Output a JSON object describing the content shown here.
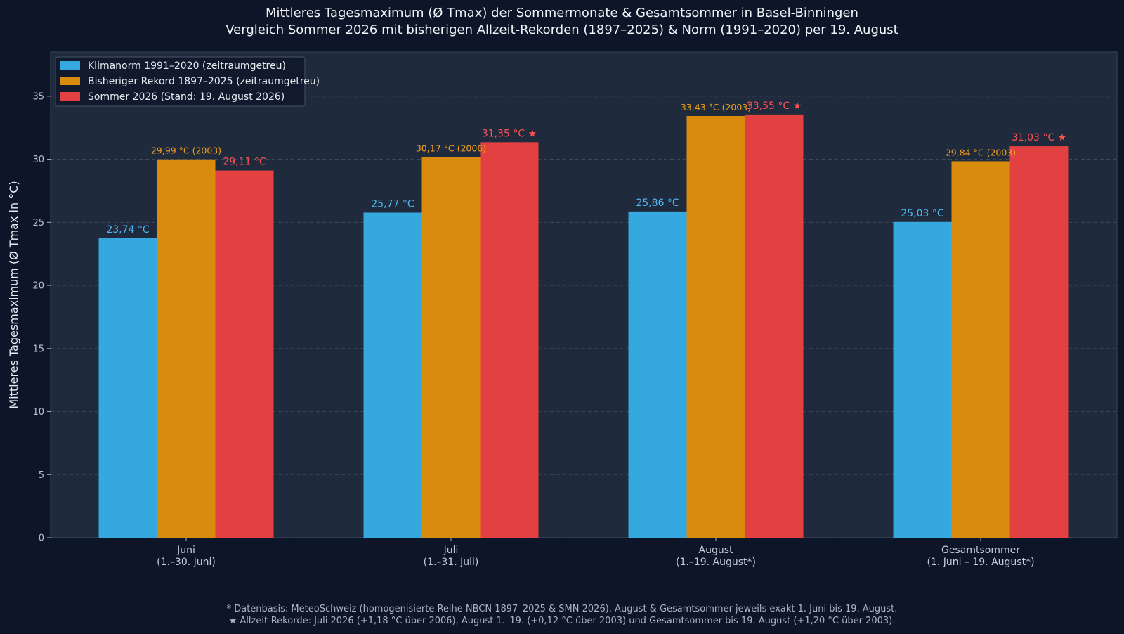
{
  "title_line1": "Mittleres Tagesmaximum (Ø Tmax) der Sommermonate & Gesamtsommer in Basel-Binningen",
  "title_line2": "Vergleich Sommer 2026 mit bisherigen Allzeit-Rekorden (1897–2025) & Norm (1991–2020) per 19. August",
  "footnote_line1": "* Datenbasis: MeteoSchweiz (homogenisierte Reihe NBCN 1897–2025 & SMN 2026). August & Gesamtsommer jeweils exakt 1. Juni bis 19. August.",
  "footnote_line2": "★ Allzeit-Rekorde: Juli 2026 (+1,18 °C über 2006), August 1.–19. (+0,12 °C über 2003) und Gesamtsommer bis 19. August (+1,20 °C über 2003).",
  "colors": {
    "background": "#0d1628",
    "plot_area": "#1f2a3d",
    "norm": "#35a8e0",
    "record": "#d98b0e",
    "summer2026": "#e34141",
    "norm_label": "#4fb8f0",
    "record_label": "#f2a11a",
    "summer_label": "#ff5050"
  },
  "chart_data": {
    "type": "bar",
    "ylabel": "Mittleres Tagesmaximum (Ø Tmax in °C)",
    "xlabel": "",
    "ylim": [
      0,
      38.5
    ],
    "yticks": [
      0,
      5,
      10,
      15,
      20,
      25,
      30,
      35
    ],
    "grid": "horizontal dashed",
    "legend_position": "top-left",
    "categories": [
      {
        "label": "Juni",
        "sublabel": "(1.–30. Juni)"
      },
      {
        "label": "Juli",
        "sublabel": "(1.–31. Juli)"
      },
      {
        "label": "August",
        "sublabel": "(1.–19. August*)"
      },
      {
        "label": "Gesamtsommer",
        "sublabel": "(1. Juni – 19. August*)"
      }
    ],
    "series": [
      {
        "name": "Klimanorm 1991–2020 (zeitraumgetreu)",
        "values": [
          23.74,
          25.77,
          25.86,
          25.03
        ],
        "labels": [
          "23,74 °C",
          "25,77 °C",
          "25,86 °C",
          "25,03 °C"
        ]
      },
      {
        "name": "Bisheriger Rekord 1897–2025 (zeitraumgetreu)",
        "values": [
          29.99,
          30.17,
          33.43,
          29.84
        ],
        "labels": [
          "29,99 °C (2003)",
          "30,17 °C (2006)",
          "33,43 °C (2003)",
          "29,84 °C (2003)"
        ]
      },
      {
        "name": "Sommer 2026 (Stand: 19. August 2026)",
        "values": [
          29.11,
          31.35,
          33.55,
          31.03
        ],
        "labels": [
          "29,11 °C",
          "31,35 °C ★",
          "33,55 °C ★",
          "31,03 °C ★"
        ]
      }
    ]
  }
}
